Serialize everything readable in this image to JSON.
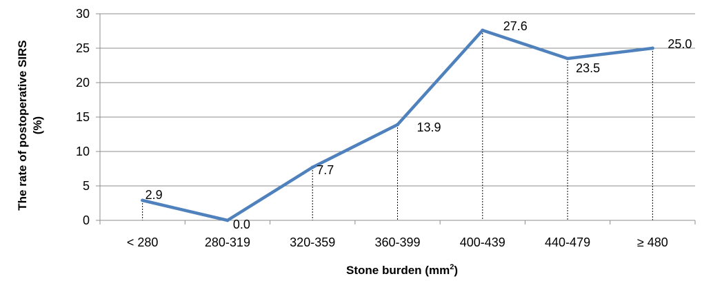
{
  "chart_data": {
    "type": "line",
    "title": "",
    "xlabel": "Stone burden (mm",
    "xlabel_sup": "2",
    "xlabel_suffix": ")",
    "ylabel_line1": "The rate of postoperative SIRS",
    "ylabel_line2": "(%)",
    "categories": [
      "< 280",
      "280-319",
      "320-359",
      "360-399",
      "400-439",
      "440-479",
      "≥ 480"
    ],
    "series": [
      {
        "values": [
          2.9,
          0.0,
          7.7,
          13.9,
          27.6,
          23.5,
          25.0
        ],
        "labels": [
          "2.9",
          "0.0",
          "7.7",
          "13.9",
          "27.6",
          "23.5",
          "25.0"
        ]
      }
    ],
    "ylim": [
      0,
      30
    ],
    "yticks": [
      0,
      5,
      10,
      15,
      20,
      25,
      30
    ],
    "ytick_labels": [
      "0",
      "5",
      "10",
      "15",
      "20",
      "25",
      "30"
    ],
    "grid": true,
    "drop_lines": true,
    "legend": "none",
    "colors": {
      "series": "#4f81bd",
      "grid": "#8c8c8c"
    }
  }
}
